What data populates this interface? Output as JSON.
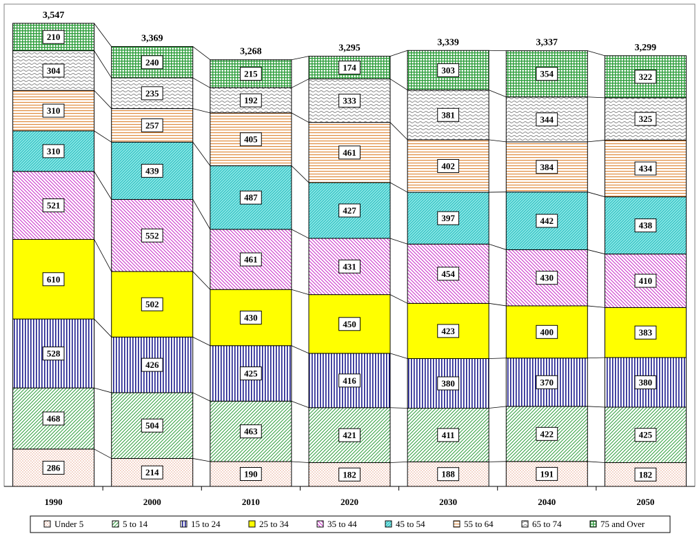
{
  "chart_data": {
    "type": "bar",
    "stacked": true,
    "title": "",
    "xlabel": "",
    "ylabel": "",
    "categories": [
      "1990",
      "2000",
      "2010",
      "2020",
      "2030",
      "2040",
      "2050"
    ],
    "totals": [
      "3,547",
      "3,369",
      "3,268",
      "3,295",
      "3,339",
      "3,337",
      "3,299"
    ],
    "series": [
      {
        "name": "Under 5",
        "values": [
          286,
          214,
          190,
          182,
          188,
          191,
          182
        ],
        "color": "#ffd9c4",
        "pattern": "dots"
      },
      {
        "name": "5 to 14",
        "values": [
          468,
          504,
          463,
          421,
          411,
          422,
          425
        ],
        "color": "#2e9e3c",
        "pattern": "diag-up"
      },
      {
        "name": "15 to 24",
        "values": [
          528,
          426,
          425,
          416,
          380,
          370,
          380
        ],
        "color": "#1a1a8c",
        "pattern": "vertical"
      },
      {
        "name": "25 to 34",
        "values": [
          610,
          502,
          430,
          450,
          423,
          400,
          383
        ],
        "color": "#ffff00",
        "pattern": "solid"
      },
      {
        "name": "35 to 44",
        "values": [
          521,
          552,
          461,
          431,
          454,
          430,
          410
        ],
        "color": "#cc33cc",
        "pattern": "diag-down"
      },
      {
        "name": "45 to 54",
        "values": [
          310,
          439,
          487,
          427,
          397,
          442,
          438
        ],
        "color": "#33cccc",
        "pattern": "diag-up-dense"
      },
      {
        "name": "55 to 64",
        "values": [
          310,
          257,
          405,
          461,
          402,
          384,
          434
        ],
        "color": "#e08a3c",
        "pattern": "horizontal"
      },
      {
        "name": "65 to 74",
        "values": [
          304,
          235,
          192,
          333,
          381,
          344,
          325
        ],
        "color": "#888888",
        "pattern": "wave"
      },
      {
        "name": "75 and Over",
        "values": [
          210,
          240,
          215,
          174,
          303,
          354,
          322
        ],
        "color": "#2e9e3c",
        "pattern": "grid"
      }
    ],
    "legend_position": "bottom",
    "grid": false
  }
}
